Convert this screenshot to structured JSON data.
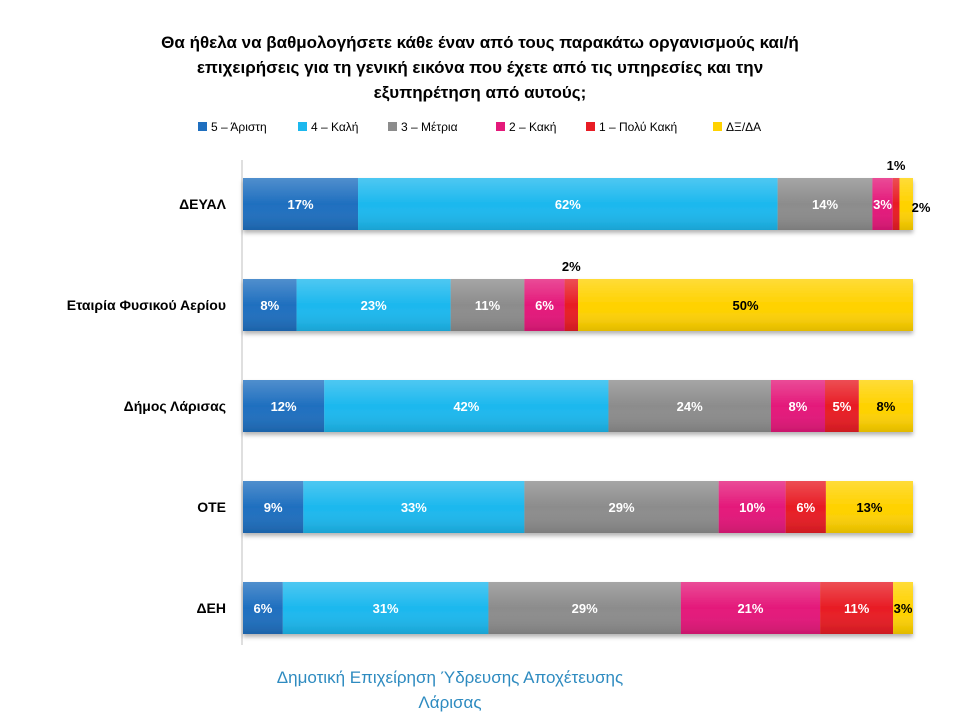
{
  "title": {
    "line1": "Θα ήθελα να βαθμολογήσετε κάθε έναν από τους παρακάτω οργανισμούς και/ή",
    "line2": "επιχειρήσεις για τη γενική εικόνα που έχετε από τις υπηρεσίες και την",
    "line3": "εξυπηρέτηση από αυτούς;"
  },
  "footer": {
    "line1": "Δημοτική Επιχείρηση Ύδρευσης Αποχέτευσης",
    "line2": "Λάρισας"
  },
  "colors": {
    "s1": "#1f6fbf",
    "s2": "#1cb8ee",
    "s3": "#8c8c8c",
    "s4": "#e4197a",
    "s5": "#e81c24",
    "s6": "#ffd200"
  },
  "chart_data": {
    "type": "bar",
    "orientation": "horizontal",
    "stacked": "percent",
    "categories": [
      "ΔΕΥΑΛ",
      "Εταιρία Φυσικού Αερίου",
      "Δήμος Λάρισας",
      "ΟΤΕ",
      "ΔΕΗ"
    ],
    "series": [
      {
        "name": "5 – Άριστη",
        "color": "#1f6fbf",
        "values": [
          17,
          8,
          12,
          9,
          6
        ]
      },
      {
        "name": "4 – Καλή",
        "color": "#1cb8ee",
        "values": [
          62,
          23,
          42,
          33,
          31
        ]
      },
      {
        "name": "3 – Μέτρια",
        "color": "#8c8c8c",
        "values": [
          14,
          11,
          24,
          29,
          29
        ]
      },
      {
        "name": "2 – Κακή",
        "color": "#e4197a",
        "values": [
          3,
          6,
          8,
          10,
          21
        ]
      },
      {
        "name": "1 – Πολύ Κακή",
        "color": "#e81c24",
        "values": [
          1,
          2,
          5,
          6,
          11
        ]
      },
      {
        "name": "ΔΞ/ΔΑ",
        "color": "#ffd200",
        "values": [
          2,
          50,
          8,
          13,
          3
        ]
      }
    ],
    "value_suffix": "%",
    "legend": "top",
    "grid": false
  }
}
